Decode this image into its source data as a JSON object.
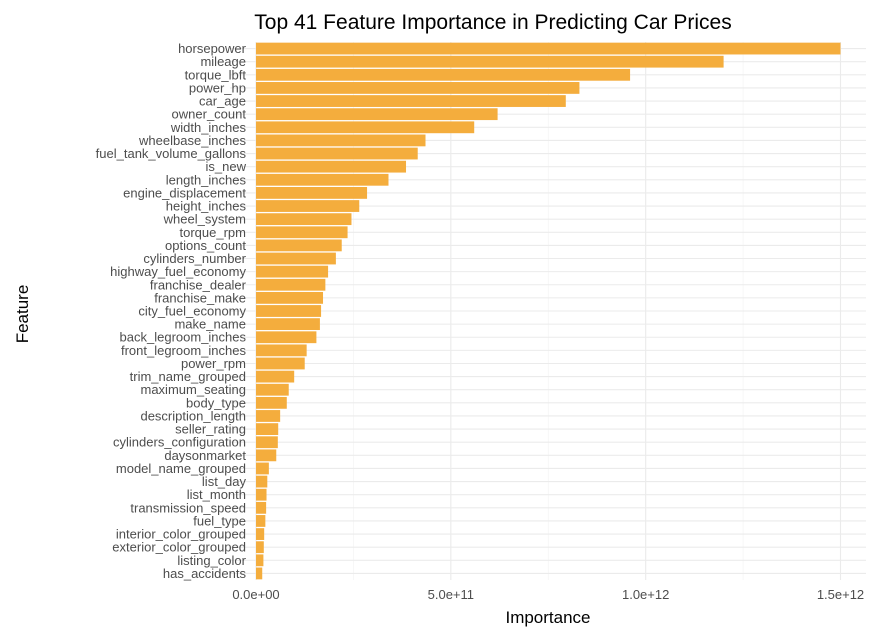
{
  "chart_data": {
    "type": "bar",
    "orientation": "horizontal",
    "title": "Top 41 Feature Importance in Predicting Car Prices",
    "xlabel": "Importance",
    "ylabel": "Feature",
    "bar_color": "#F4AD3D",
    "xlim": [
      0,
      1500000000000.0
    ],
    "xticks": [
      0,
      500000000000.0,
      1000000000000.0,
      1500000000000.0
    ],
    "xtick_labels": [
      "0.0e+00",
      "5.0e+11",
      "1.0e+12",
      "1.5e+12"
    ],
    "grid": true,
    "legend": "none",
    "categories": [
      "horsepower",
      "mileage",
      "torque_lbft",
      "power_hp",
      "car_age",
      "owner_count",
      "width_inches",
      "wheelbase_inches",
      "fuel_tank_volume_gallons",
      "is_new",
      "length_inches",
      "engine_displacement",
      "height_inches",
      "wheel_system",
      "torque_rpm",
      "options_count",
      "cylinders_number",
      "highway_fuel_economy",
      "franchise_dealer",
      "franchise_make",
      "city_fuel_economy",
      "make_name",
      "back_legroom_inches",
      "front_legroom_inches",
      "power_rpm",
      "trim_name_grouped",
      "maximum_seating",
      "body_type",
      "description_length",
      "seller_rating",
      "cylinders_configuration",
      "daysonmarket",
      "model_name_grouped",
      "list_day",
      "list_month",
      "transmission_speed",
      "fuel_type",
      "interior_color_grouped",
      "exterior_color_grouped",
      "listing_color",
      "has_accidents"
    ],
    "values": [
      1500000000000.0,
      1200000000000.0,
      960000000000.0,
      830000000000.0,
      795000000000.0,
      620000000000.0,
      560000000000.0,
      435000000000.0,
      415000000000.0,
      385000000000.0,
      340000000000.0,
      285000000000.0,
      265000000000.0,
      245000000000.0,
      235000000000.0,
      220000000000.0,
      205000000000.0,
      185000000000.0,
      178000000000.0,
      172000000000.0,
      167000000000.0,
      164000000000.0,
      155000000000.0,
      130000000000.0,
      125000000000.0,
      98000000000.0,
      84000000000.0,
      79000000000.0,
      62000000000.0,
      57000000000.0,
      56000000000.0,
      52000000000.0,
      33000000000.0,
      29000000000.0,
      27000000000.0,
      26000000000.0,
      24000000000.0,
      21000000000.0,
      20000000000.0,
      19000000000.0,
      16000000000.0
    ]
  }
}
